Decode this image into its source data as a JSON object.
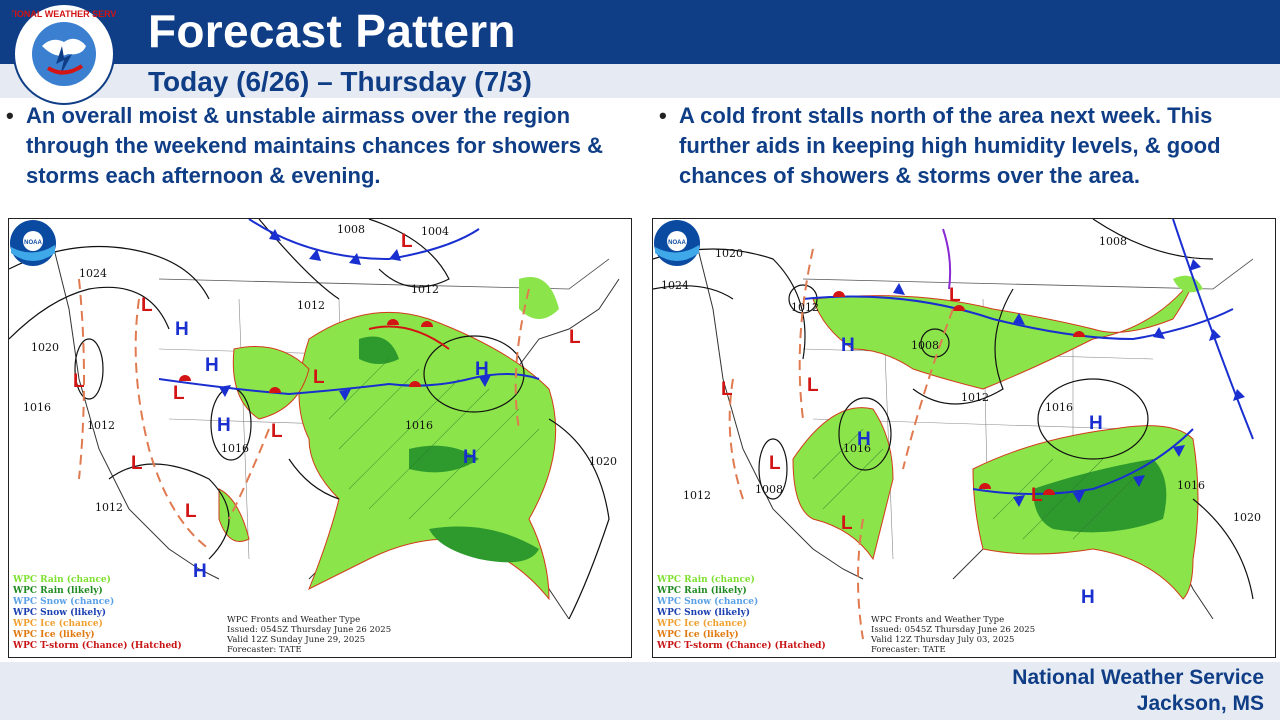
{
  "header": {
    "title": "Forecast Pattern",
    "subtitle": "Today (6/26) – Thursday (7/3)",
    "logo_text": "NATIONAL WEATHER SERVICE"
  },
  "bullets": {
    "left": "An overall moist & unstable airmass over the region through the weekend maintains chances for showers & storms each afternoon & evening.",
    "right": "A cold front stalls north of the area next week. This further aids in keeping high humidity levels, & good chances of showers & storms over the area."
  },
  "legend": [
    {
      "label": "WPC Rain (chance)",
      "color": "#7fe030"
    },
    {
      "label": "WPC Rain (likely)",
      "color": "#1f8a1f"
    },
    {
      "label": "WPC Snow (chance)",
      "color": "#5aa0e6"
    },
    {
      "label": "WPC Snow (likely)",
      "color": "#1a3fb0"
    },
    {
      "label": "WPC Ice (chance)",
      "color": "#f0a030"
    },
    {
      "label": "WPC Ice (likely)",
      "color": "#e07a10"
    },
    {
      "label": "WPC T-storm (Chance) (Hatched)",
      "color": "#c81414"
    }
  ],
  "maps": [
    {
      "info": [
        "WPC Fronts and Weather Type",
        "Issued: 0545Z Thursday June 26 2025",
        "Valid 12Z Sunday June 29, 2025",
        "Forecaster: TATE"
      ],
      "isobars": [
        "1024",
        "1020",
        "1016",
        "1012",
        "1008",
        "1004",
        "1012",
        "1016",
        "1012",
        "1012",
        "1016",
        "1020"
      ],
      "highs": [
        "H",
        "H",
        "H",
        "H",
        "H",
        "H"
      ],
      "lows": [
        "L",
        "L",
        "L",
        "L",
        "L",
        "L",
        "L",
        "L",
        "L"
      ]
    },
    {
      "info": [
        "WPC Fronts and Weather Type",
        "Issued: 0545Z Thursday June 26 2025",
        "Valid 12Z Thursday July 03, 2025",
        "Forecaster: TATE"
      ],
      "isobars": [
        "1020",
        "1024",
        "1012",
        "1008",
        "1008",
        "1012",
        "1016",
        "1016",
        "1012",
        "1008",
        "1016",
        "1020"
      ],
      "highs": [
        "H",
        "H",
        "H",
        "H"
      ],
      "lows": [
        "L",
        "L",
        "L",
        "L",
        "L",
        "L"
      ]
    }
  ],
  "footer": {
    "office": "National Weather Service",
    "location": "Jackson, MS"
  },
  "colors": {
    "brand": "#0f3d86",
    "high": "#1a2fd0",
    "low": "#d21414"
  }
}
